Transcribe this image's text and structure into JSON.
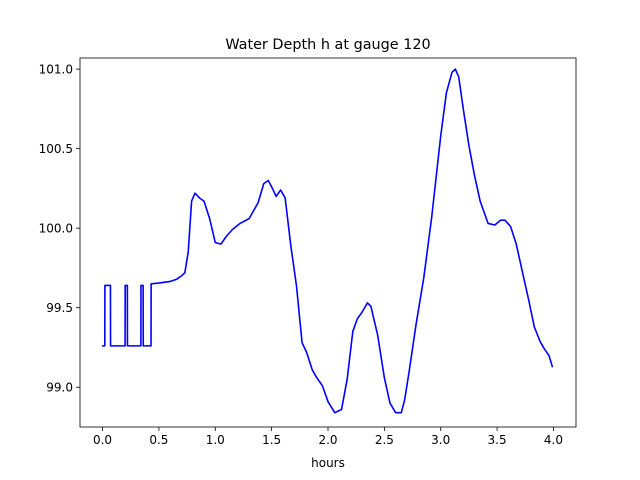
{
  "chart_data": {
    "type": "line",
    "title": "Water Depth h at gauge 120",
    "xlabel": "hours",
    "ylabel": "",
    "xlim": [
      -0.2,
      4.2
    ],
    "ylim": [
      98.75,
      101.07
    ],
    "grid": false,
    "x_ticks": [
      0.0,
      0.5,
      1.0,
      1.5,
      2.0,
      2.5,
      3.0,
      3.5,
      4.0
    ],
    "x_tick_labels": [
      "0.0",
      "0.5",
      "1.0",
      "1.5",
      "2.0",
      "2.5",
      "3.0",
      "3.5",
      "4.0"
    ],
    "y_ticks": [
      99.0,
      99.5,
      100.0,
      100.5,
      101.0
    ],
    "y_tick_labels": [
      "99.0",
      "99.5",
      "100.0",
      "100.5",
      "101.0"
    ],
    "series": [
      {
        "color": "#0000ff",
        "x": [
          0.0,
          0.02,
          0.021,
          0.07,
          0.071,
          0.2,
          0.201,
          0.22,
          0.221,
          0.34,
          0.341,
          0.36,
          0.361,
          0.43,
          0.431,
          0.5,
          0.6,
          0.66,
          0.7,
          0.73,
          0.76,
          0.79,
          0.82,
          0.86,
          0.9,
          0.95,
          1.0,
          1.05,
          1.1,
          1.15,
          1.22,
          1.3,
          1.38,
          1.43,
          1.47,
          1.5,
          1.54,
          1.58,
          1.62,
          1.67,
          1.72,
          1.77,
          1.81,
          1.86,
          1.9,
          1.95,
          2.0,
          2.06,
          2.12,
          2.17,
          2.22,
          2.26,
          2.3,
          2.35,
          2.38,
          2.4,
          2.44,
          2.5,
          2.55,
          2.6,
          2.65,
          2.68,
          2.72,
          2.78,
          2.85,
          2.92,
          3.0,
          3.05,
          3.1,
          3.13,
          3.16,
          3.2,
          3.25,
          3.3,
          3.35,
          3.42,
          3.48,
          3.53,
          3.57,
          3.62,
          3.67,
          3.72,
          3.78,
          3.83,
          3.88,
          3.92,
          3.96,
          3.99
        ],
        "y": [
          99.26,
          99.26,
          99.64,
          99.64,
          99.26,
          99.26,
          99.64,
          99.64,
          99.26,
          99.26,
          99.64,
          99.64,
          99.26,
          99.26,
          99.65,
          99.655,
          99.665,
          99.68,
          99.7,
          99.72,
          99.85,
          100.17,
          100.22,
          100.19,
          100.17,
          100.06,
          99.91,
          99.9,
          99.95,
          99.99,
          100.03,
          100.06,
          100.16,
          100.28,
          100.3,
          100.26,
          100.2,
          100.24,
          100.19,
          99.89,
          99.64,
          99.28,
          99.22,
          99.11,
          99.06,
          99.01,
          98.91,
          98.84,
          98.86,
          99.05,
          99.35,
          99.43,
          99.47,
          99.53,
          99.51,
          99.45,
          99.33,
          99.06,
          98.9,
          98.84,
          98.84,
          98.92,
          99.1,
          99.39,
          99.69,
          100.07,
          100.58,
          100.85,
          100.98,
          101.0,
          100.95,
          100.75,
          100.52,
          100.33,
          100.17,
          100.03,
          100.02,
          100.05,
          100.05,
          100.01,
          99.9,
          99.74,
          99.55,
          99.38,
          99.29,
          99.24,
          99.2,
          99.13
        ]
      }
    ]
  }
}
